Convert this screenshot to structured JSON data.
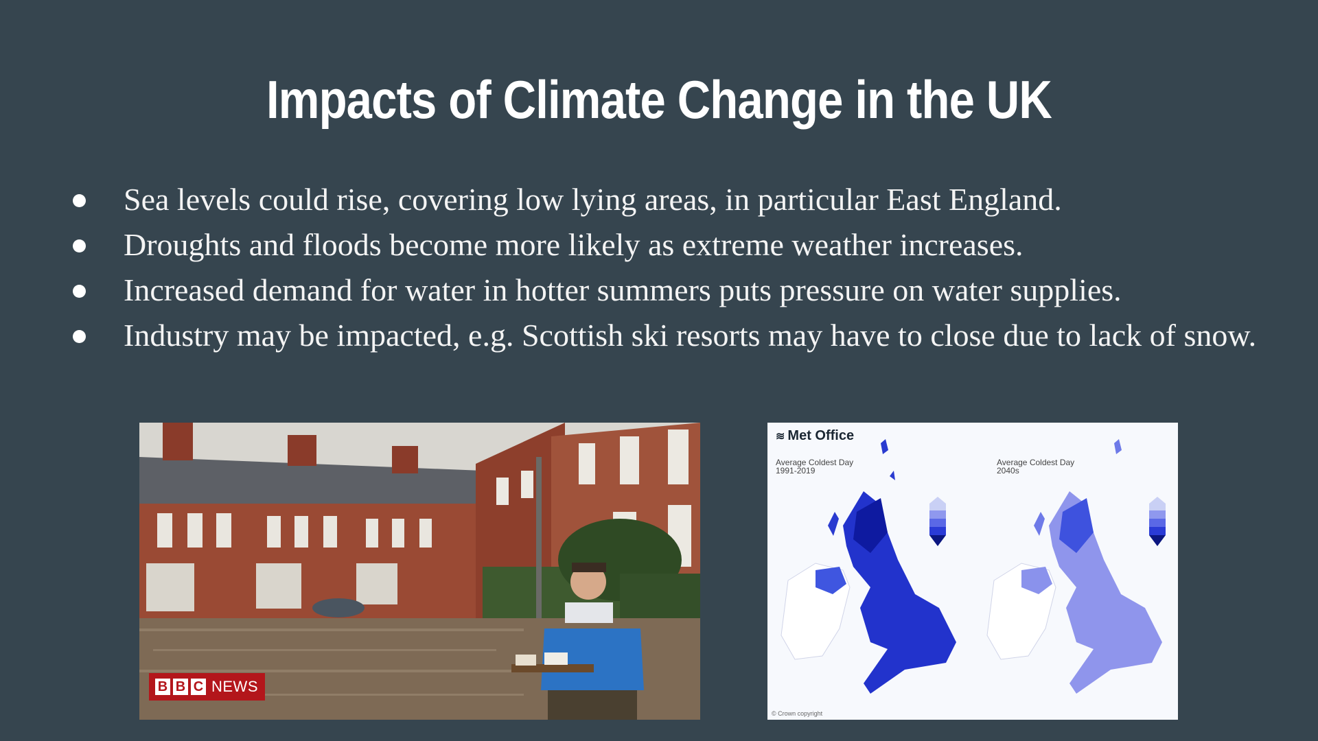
{
  "slide": {
    "title": "Impacts of Climate Change in the UK",
    "bullets": [
      "Sea levels could rise, covering low lying areas, in particular East England.",
      "Droughts and floods become more likely as extreme weather increases.",
      "Increased demand for water in hotter summers puts pressure on water supplies.",
      "Industry may be impacted, e.g. Scottish ski resorts may have to close due to lack of snow."
    ]
  },
  "flood_photo": {
    "bbc_letters": [
      "B",
      "B",
      "C"
    ],
    "bbc_news_label": "NEWS"
  },
  "met_map": {
    "logo_text": "Met Office",
    "left_label_line1": "Average Coldest Day",
    "left_label_line2": "1991-2019",
    "right_label_line1": "Average Coldest Day",
    "right_label_line2": "2040s",
    "copyright": "© Crown copyright"
  },
  "colors": {
    "background": "#36454f",
    "title_text": "#ffffff",
    "body_text": "#f4f4f4",
    "bbc_red": "#b3161b",
    "map_dark_blue": "#1d2fd6",
    "map_light_blue": "#8f95ec"
  }
}
